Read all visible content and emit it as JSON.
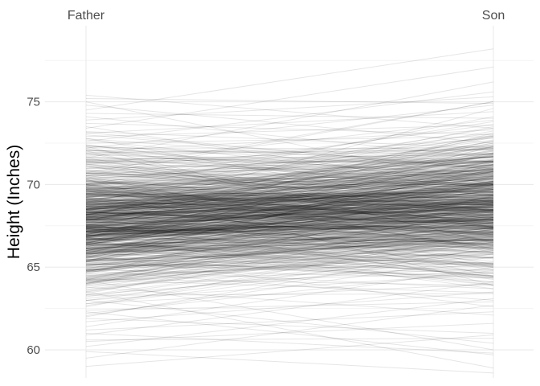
{
  "chart_data": {
    "type": "line",
    "title": "",
    "xlabel": "",
    "ylabel": "Height (Inches)",
    "categories": [
      "Father",
      "Son"
    ],
    "ylim": [
      58.3,
      79.6
    ],
    "y_ticks": [
      60,
      65,
      70,
      75
    ],
    "grid": true,
    "legend": "none",
    "line_color": "#000000",
    "line_opacity": 0.1,
    "pairs": [
      [
        59.0,
        60.9
      ],
      [
        59.5,
        62.7
      ],
      [
        59.9,
        58.6
      ],
      [
        60.2,
        63.1
      ],
      [
        60.5,
        61.6
      ],
      [
        60.6,
        60.7
      ],
      [
        60.9,
        64.1
      ],
      [
        61.0,
        59.8
      ],
      [
        61.2,
        62.3
      ],
      [
        61.4,
        65.0
      ],
      [
        61.7,
        63.5
      ],
      [
        61.9,
        61.0
      ],
      [
        62.0,
        66.2
      ],
      [
        62.2,
        64.8
      ],
      [
        62.4,
        62.9
      ],
      [
        62.6,
        67.1
      ],
      [
        62.8,
        64.0
      ],
      [
        63.0,
        60.4
      ],
      [
        63.1,
        65.9
      ],
      [
        63.3,
        63.4
      ],
      [
        63.4,
        68.0
      ],
      [
        63.6,
        66.5
      ],
      [
        63.8,
        62.1
      ],
      [
        63.9,
        64.7
      ],
      [
        64.0,
        69.3
      ],
      [
        64.1,
        66.0
      ],
      [
        64.3,
        63.9
      ],
      [
        64.4,
        67.4
      ],
      [
        64.5,
        65.3
      ],
      [
        64.6,
        70.1
      ],
      [
        64.7,
        66.8
      ],
      [
        64.8,
        63.0
      ],
      [
        64.9,
        68.6
      ],
      [
        65.0,
        65.6
      ],
      [
        65.1,
        67.8
      ],
      [
        65.2,
        64.4
      ],
      [
        65.3,
        69.7
      ],
      [
        65.4,
        66.1
      ],
      [
        65.5,
        71.2
      ],
      [
        65.6,
        67.5
      ],
      [
        65.7,
        62.6
      ],
      [
        65.8,
        68.9
      ],
      [
        65.9,
        66.7
      ],
      [
        66.0,
        70.5
      ],
      [
        66.0,
        65.2
      ],
      [
        66.1,
        67.9
      ],
      [
        66.2,
        72.3
      ],
      [
        66.3,
        64.1
      ],
      [
        66.4,
        69.1
      ],
      [
        66.5,
        66.4
      ],
      [
        66.6,
        70.8
      ],
      [
        66.7,
        68.2
      ],
      [
        66.8,
        63.7
      ],
      [
        66.9,
        67.0
      ],
      [
        67.0,
        71.5
      ],
      [
        67.0,
        69.4
      ],
      [
        67.1,
        65.8
      ],
      [
        67.2,
        68.7
      ],
      [
        67.3,
        73.1
      ],
      [
        67.4,
        66.9
      ],
      [
        67.5,
        70.0
      ],
      [
        67.6,
        64.6
      ],
      [
        67.7,
        69.0
      ],
      [
        67.8,
        71.9
      ],
      [
        67.9,
        67.3
      ],
      [
        68.0,
        68.5
      ],
      [
        68.0,
        74.6
      ],
      [
        68.1,
        65.5
      ],
      [
        68.2,
        70.4
      ],
      [
        68.3,
        67.7
      ],
      [
        68.4,
        72.6
      ],
      [
        68.5,
        69.6
      ],
      [
        68.6,
        66.3
      ],
      [
        68.7,
        71.1
      ],
      [
        68.8,
        68.0
      ],
      [
        68.9,
        73.5
      ],
      [
        69.0,
        69.8
      ],
      [
        69.0,
        65.0
      ],
      [
        69.1,
        70.7
      ],
      [
        69.2,
        67.2
      ],
      [
        69.3,
        72.0
      ],
      [
        69.4,
        69.2
      ],
      [
        69.5,
        74.1
      ],
      [
        69.6,
        66.6
      ],
      [
        69.7,
        70.3
      ],
      [
        69.8,
        68.4
      ],
      [
        69.9,
        71.7
      ],
      [
        70.0,
        73.8
      ],
      [
        70.0,
        67.6
      ],
      [
        70.1,
        70.9
      ],
      [
        70.2,
        68.8
      ],
      [
        70.3,
        72.4
      ],
      [
        70.4,
        66.0
      ],
      [
        70.5,
        71.3
      ],
      [
        70.6,
        69.5
      ],
      [
        70.7,
        75.0
      ],
      [
        70.8,
        70.2
      ],
      [
        70.9,
        67.9
      ],
      [
        71.0,
        72.8
      ],
      [
        71.1,
        69.0
      ],
      [
        71.2,
        73.9
      ],
      [
        71.3,
        70.6
      ],
      [
        71.4,
        68.1
      ],
      [
        71.5,
        71.8
      ],
      [
        71.6,
        76.2
      ],
      [
        71.7,
        69.9
      ],
      [
        71.8,
        72.1
      ],
      [
        71.9,
        67.4
      ],
      [
        72.0,
        73.3
      ],
      [
        72.1,
        70.5
      ],
      [
        72.2,
        74.8
      ],
      [
        72.3,
        71.4
      ],
      [
        72.4,
        69.3
      ],
      [
        72.5,
        72.9
      ],
      [
        72.6,
        75.6
      ],
      [
        72.7,
        70.1
      ],
      [
        72.8,
        68.3
      ],
      [
        72.9,
        73.6
      ],
      [
        73.0,
        71.0
      ],
      [
        73.1,
        74.4
      ],
      [
        73.2,
        72.2
      ],
      [
        73.4,
        77.1
      ],
      [
        73.5,
        69.7
      ],
      [
        73.7,
        73.0
      ],
      [
        73.9,
        75.3
      ],
      [
        74.1,
        71.6
      ],
      [
        74.3,
        74.0
      ],
      [
        74.5,
        78.2
      ],
      [
        74.8,
        72.5
      ],
      [
        75.0,
        70.0
      ],
      [
        75.2,
        74.9
      ],
      [
        75.4,
        73.4
      ],
      [
        63.5,
        58.9
      ],
      [
        64.2,
        60.0
      ],
      [
        62.3,
        59.7
      ]
    ]
  }
}
